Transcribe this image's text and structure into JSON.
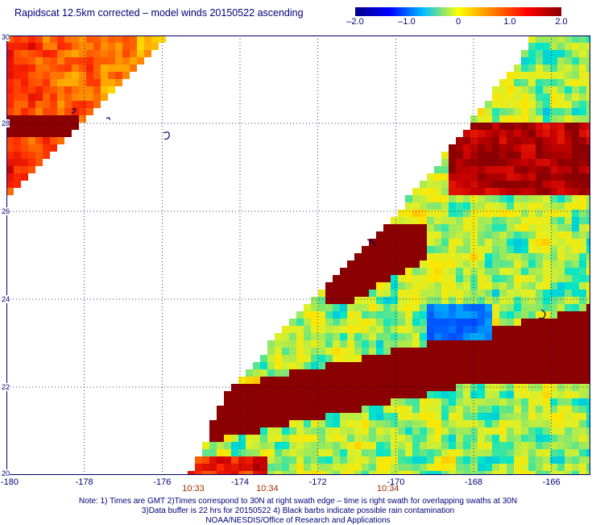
{
  "title": "Rapidscat 12.5km corrected – model winds 20150522 ascending",
  "colorbar": {
    "labels": [
      "–2.0",
      "–1.0",
      "0",
      "1.0",
      "2.0"
    ],
    "values": [
      -2.0,
      -1.0,
      0,
      1.0,
      2.0
    ],
    "colors": [
      "#00008b",
      "#0000ff",
      "#00c0ff",
      "#ffff00",
      "#ff8000",
      "#ff0000",
      "#8b0000"
    ]
  },
  "map": {
    "lon_range": [
      -180,
      -165
    ],
    "lat_range": [
      20,
      30
    ],
    "x_tick_labels": [
      "-180",
      "-178",
      "-176",
      "-174",
      "-172",
      "-170",
      "-168",
      "-166"
    ],
    "x_tick_values": [
      -180,
      -178,
      -176,
      -174,
      -172,
      -170,
      -168,
      -166
    ],
    "y_tick_labels": [
      "30",
      "28",
      "26",
      "24",
      "22",
      "20"
    ],
    "y_tick_values": [
      30,
      28,
      26,
      24,
      22,
      20
    ],
    "grid": true
  },
  "time_labels": [
    {
      "text": "10:33",
      "lon": -175.2
    },
    {
      "text": "10:34",
      "lon": -173.3
    },
    {
      "text": "10:34",
      "lon": -170.2
    }
  ],
  "notes": [
    "Note: 1) Times are GMT 2)Times correspond to 30N at right swath edge – time is right swath for overlapping swaths at 30N",
    "3)Data buffer is 22 hrs for 20150522 4) Black barbs indicate possible rain contamination",
    "NOAA/NESDIS/Office of Research and Applications"
  ]
}
